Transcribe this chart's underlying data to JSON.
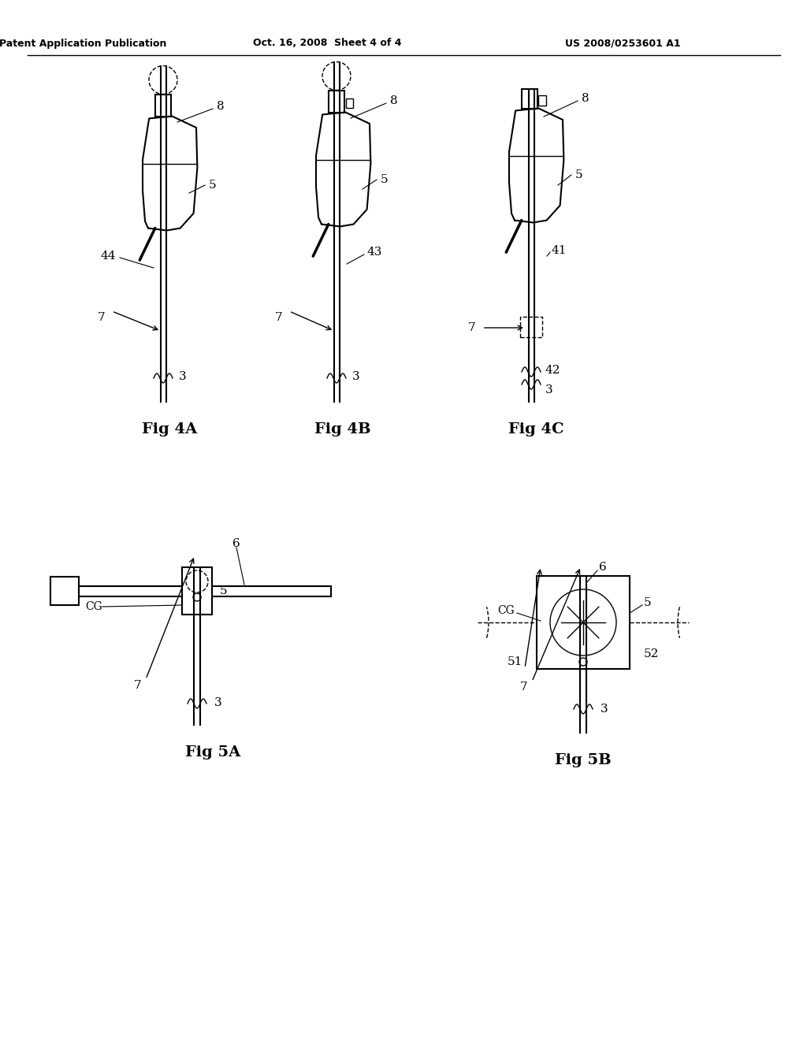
{
  "bg_color": "#ffffff",
  "header_left": "Patent Application Publication",
  "header_mid": "Oct. 16, 2008  Sheet 4 of 4",
  "header_right": "US 2008/0253601 A1",
  "lw_main": 1.5,
  "lw_thin": 1.0,
  "black": "#000000"
}
